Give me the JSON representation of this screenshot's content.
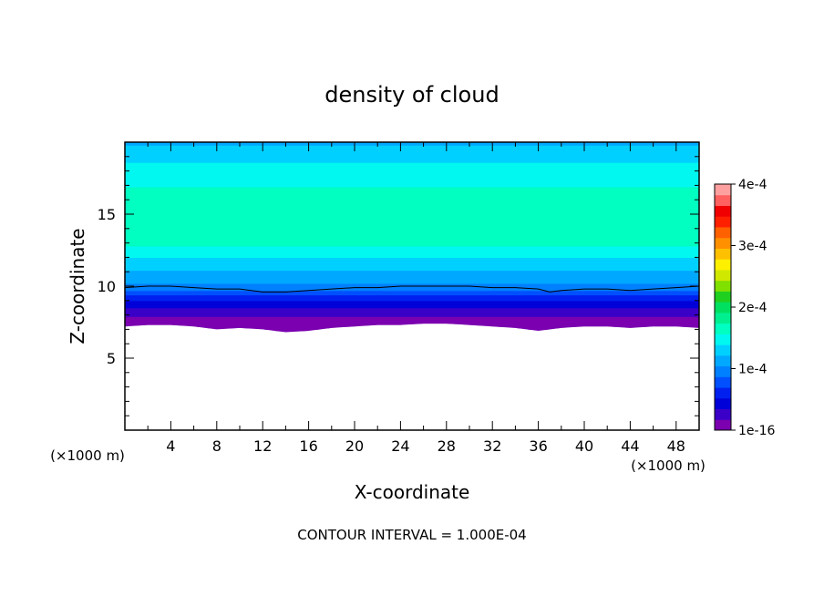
{
  "chart_data": {
    "type": "heatmap",
    "title": "density of cloud",
    "xlabel": "X-coordinate",
    "ylabel": "Z-coordinate",
    "x_unit_left": "(×1000 m)",
    "x_unit_right": "(×1000 m)",
    "xlim": [
      0,
      50
    ],
    "ylim": [
      0,
      20
    ],
    "x_ticks": [
      4,
      8,
      12,
      16,
      20,
      24,
      28,
      32,
      36,
      40,
      44,
      48
    ],
    "y_ticks": [
      5,
      10,
      15
    ],
    "footer": "CONTOUR INTERVAL = 1.000E-04",
    "colorbar": {
      "min": 0,
      "max": 0.0004,
      "tick_values": [
        0,
        0.0001,
        0.0002,
        0.0003,
        0.0004
      ],
      "tick_labels": [
        "1e-16",
        "1e-4",
        "2e-4",
        "3e-4",
        "4e-4"
      ],
      "colors": [
        "#7a00b0",
        "#3a00c8",
        "#0000d8",
        "#0020f0",
        "#0050ff",
        "#0080ff",
        "#00a8ff",
        "#00d0ff",
        "#00f8f0",
        "#00ffc0",
        "#00f090",
        "#00e060",
        "#20d020",
        "#80e000",
        "#d0e800",
        "#fff000",
        "#ffc000",
        "#ff9000",
        "#ff6000",
        "#ff2000",
        "#f00000",
        "#ff6060",
        "#ffa0a0"
      ]
    },
    "profile": {
      "z": [
        7,
        7.3,
        7.6,
        8.0,
        8.5,
        9.0,
        9.5,
        10.0,
        10.5,
        11.0,
        11.5,
        12.0,
        12.5,
        13.0,
        14.0,
        15.0,
        16.0,
        16.5,
        17.0,
        17.5,
        18.0,
        18.5,
        19.0,
        19.5,
        20.0
      ],
      "density": [
        0,
        4e-06,
        1e-05,
        2e-05,
        3.5e-05,
        5e-05,
        7.5e-05,
        0.0001,
        0.00011,
        0.00012,
        0.00013,
        0.00014,
        0.00015,
        0.00016,
        0.000168,
        0.00017,
        0.000168,
        0.000162,
        0.000155,
        0.00015,
        0.000145,
        0.00014,
        0.000132,
        0.000125,
        0.00012
      ]
    },
    "cloud_base_z": [
      [
        0,
        7.2
      ],
      [
        2,
        7.3
      ],
      [
        4,
        7.3
      ],
      [
        6,
        7.2
      ],
      [
        8,
        7.0
      ],
      [
        10,
        7.1
      ],
      [
        12,
        7.0
      ],
      [
        14,
        6.8
      ],
      [
        16,
        6.9
      ],
      [
        18,
        7.1
      ],
      [
        20,
        7.2
      ],
      [
        22,
        7.3
      ],
      [
        24,
        7.3
      ],
      [
        26,
        7.4
      ],
      [
        28,
        7.4
      ],
      [
        30,
        7.3
      ],
      [
        32,
        7.2
      ],
      [
        34,
        7.1
      ],
      [
        36,
        6.9
      ],
      [
        38,
        7.1
      ],
      [
        40,
        7.2
      ],
      [
        42,
        7.2
      ],
      [
        44,
        7.1
      ],
      [
        46,
        7.2
      ],
      [
        48,
        7.2
      ],
      [
        50,
        7.1
      ]
    ],
    "contour_1e-4_z": [
      [
        0,
        9.9
      ],
      [
        2,
        10.0
      ],
      [
        4,
        10.0
      ],
      [
        6,
        9.9
      ],
      [
        8,
        9.8
      ],
      [
        10,
        9.8
      ],
      [
        12,
        9.6
      ],
      [
        14,
        9.6
      ],
      [
        16,
        9.7
      ],
      [
        18,
        9.8
      ],
      [
        20,
        9.9
      ],
      [
        22,
        9.9
      ],
      [
        24,
        10.0
      ],
      [
        26,
        10.0
      ],
      [
        28,
        10.0
      ],
      [
        30,
        10.0
      ],
      [
        32,
        9.9
      ],
      [
        34,
        9.9
      ],
      [
        36,
        9.8
      ],
      [
        37,
        9.6
      ],
      [
        38,
        9.7
      ],
      [
        40,
        9.8
      ],
      [
        42,
        9.8
      ],
      [
        44,
        9.7
      ],
      [
        46,
        9.8
      ],
      [
        48,
        9.9
      ],
      [
        50,
        10.0
      ]
    ]
  }
}
